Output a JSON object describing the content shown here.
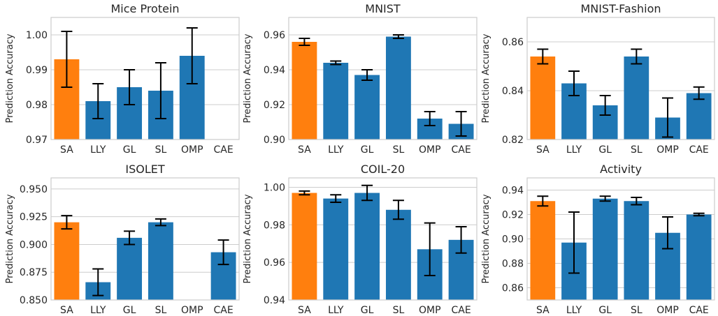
{
  "colors": {
    "highlight": "#ff7f0e",
    "default": "#1f77b4",
    "grid": "#cccccc",
    "errorbar": "#000000"
  },
  "chart_data": [
    {
      "type": "bar",
      "title": "Mice Protein",
      "ylabel": "Prediction Accuracy",
      "grid": true,
      "ylim": [
        0.97,
        1.005
      ],
      "yticks": [
        "0.97",
        "0.98",
        "0.99",
        "1.00"
      ],
      "categories": [
        "SA",
        "LLY",
        "GL",
        "SL",
        "OMP",
        "CAE"
      ],
      "values": [
        0.993,
        0.981,
        0.985,
        0.984,
        0.994,
        null
      ],
      "errors": [
        0.008,
        0.005,
        0.005,
        0.008,
        0.008,
        null
      ]
    },
    {
      "type": "bar",
      "title": "MNIST",
      "ylabel": "Prediction Accuracy",
      "grid": true,
      "ylim": [
        0.9,
        0.97
      ],
      "yticks": [
        "0.90",
        "0.92",
        "0.94",
        "0.96"
      ],
      "categories": [
        "SA",
        "LLY",
        "GL",
        "SL",
        "OMP",
        "CAE"
      ],
      "values": [
        0.956,
        0.944,
        0.937,
        0.959,
        0.912,
        0.909
      ],
      "errors": [
        0.002,
        0.001,
        0.003,
        0.001,
        0.004,
        0.007
      ]
    },
    {
      "type": "bar",
      "title": "MNIST-Fashion",
      "ylabel": "Prediction Accuracy",
      "grid": true,
      "ylim": [
        0.82,
        0.87
      ],
      "yticks": [
        "0.82",
        "0.84",
        "0.86"
      ],
      "categories": [
        "SA",
        "LLY",
        "GL",
        "SL",
        "OMP",
        "CAE"
      ],
      "values": [
        0.854,
        0.843,
        0.834,
        0.854,
        0.829,
        0.839
      ],
      "errors": [
        0.003,
        0.005,
        0.004,
        0.003,
        0.008,
        0.0025
      ]
    },
    {
      "type": "bar",
      "title": "ISOLET",
      "ylabel": "Prediction Accuracy",
      "grid": true,
      "ylim": [
        0.85,
        0.96
      ],
      "yticks": [
        "0.850",
        "0.875",
        "0.900",
        "0.925",
        "0.950"
      ],
      "categories": [
        "SA",
        "LLY",
        "GL",
        "SL",
        "OMP",
        "CAE"
      ],
      "values": [
        0.92,
        0.866,
        0.906,
        0.92,
        null,
        0.893
      ],
      "errors": [
        0.006,
        0.012,
        0.006,
        0.003,
        null,
        0.011
      ]
    },
    {
      "type": "bar",
      "title": "COIL-20",
      "ylabel": "Prediction Accuracy",
      "grid": true,
      "ylim": [
        0.94,
        1.005
      ],
      "yticks": [
        "0.94",
        "0.96",
        "0.98",
        "1.00"
      ],
      "categories": [
        "SA",
        "LLY",
        "GL",
        "SL",
        "OMP",
        "CAE"
      ],
      "values": [
        0.997,
        0.994,
        0.997,
        0.988,
        0.967,
        0.972
      ],
      "errors": [
        0.001,
        0.002,
        0.004,
        0.005,
        0.014,
        0.007
      ]
    },
    {
      "type": "bar",
      "title": "Activity",
      "ylabel": "Prediction Accuracy",
      "grid": true,
      "ylim": [
        0.85,
        0.95
      ],
      "yticks": [
        "0.86",
        "0.88",
        "0.90",
        "0.92",
        "0.94"
      ],
      "categories": [
        "SA",
        "LLY",
        "GL",
        "SL",
        "OMP",
        "CAE"
      ],
      "values": [
        0.931,
        0.897,
        0.933,
        0.931,
        0.905,
        0.92
      ],
      "errors": [
        0.004,
        0.025,
        0.002,
        0.003,
        0.013,
        0.001
      ]
    }
  ]
}
